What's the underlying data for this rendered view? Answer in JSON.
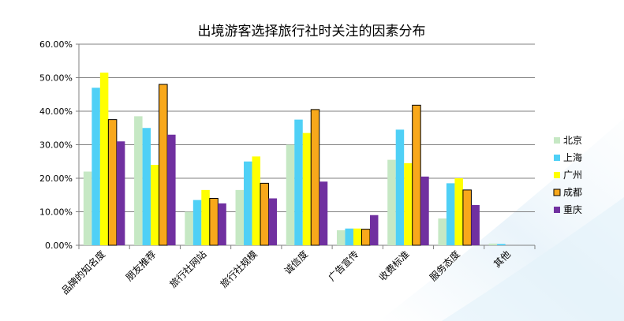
{
  "chart_data": {
    "type": "bar",
    "title": "出境游客选择旅行社时关注的因素分布",
    "categories": [
      "品牌的知名度",
      "朋友推荐",
      "旅行社网站",
      "旅行社规模",
      "诚信度",
      "广告宣传",
      "收费标准",
      "服务态度",
      "其他"
    ],
    "ylim": [
      0,
      0.6
    ],
    "yticks": [
      "0.00%",
      "10.00%",
      "20.00%",
      "30.00%",
      "40.00%",
      "50.00%",
      "60.00%"
    ],
    "grid": true,
    "legend_position": "right",
    "series": [
      {
        "name": "北京",
        "color": "#c6e8c4",
        "values": [
          0.22,
          0.385,
          0.1,
          0.165,
          0.3,
          0.045,
          0.255,
          0.08,
          0.005
        ]
      },
      {
        "name": "上海",
        "color": "#4fd0f6",
        "values": [
          0.47,
          0.35,
          0.135,
          0.25,
          0.375,
          0.05,
          0.345,
          0.185,
          0.004
        ]
      },
      {
        "name": "广州",
        "color": "#ffff00",
        "values": [
          0.515,
          0.24,
          0.165,
          0.265,
          0.335,
          0.05,
          0.245,
          0.2,
          0.0
        ]
      },
      {
        "name": "成都",
        "color": "#f8a81b",
        "values": [
          0.375,
          0.48,
          0.14,
          0.185,
          0.405,
          0.048,
          0.418,
          0.165,
          0.0
        ]
      },
      {
        "name": "重庆",
        "color": "#7030a0",
        "values": [
          0.31,
          0.33,
          0.125,
          0.14,
          0.19,
          0.09,
          0.205,
          0.12,
          0.0
        ]
      }
    ]
  }
}
